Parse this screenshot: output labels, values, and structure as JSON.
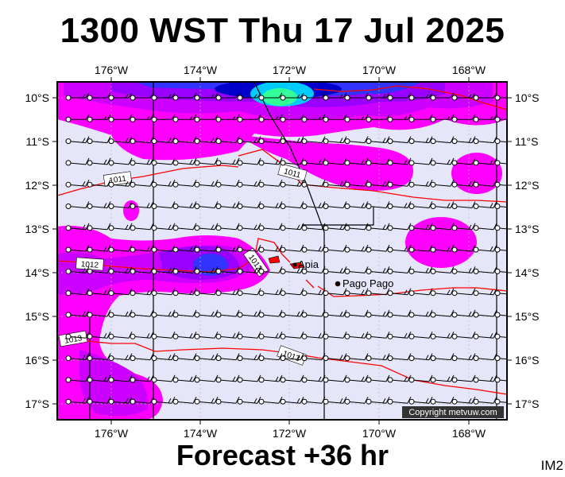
{
  "title": "1300 WST Thu 17 Jul 2025",
  "footer": "Forecast +36 hr",
  "corner_label": "IM2",
  "copyright": "Copyright metvuw.com",
  "map": {
    "lon_labels": [
      "176°W",
      "174°W",
      "172°W",
      "170°W",
      "168°W"
    ],
    "lat_labels": [
      "10°S",
      "11°S",
      "12°S",
      "13°S",
      "14°S",
      "15°S",
      "16°S",
      "17°S"
    ],
    "places": [
      {
        "name": "Apia",
        "lon": -171.76,
        "lat": -13.83
      },
      {
        "name": "Pago Pago",
        "lon": -170.7,
        "lat": -14.28
      }
    ],
    "isobar_labels": [
      "1011",
      "1011",
      "1012",
      "1012",
      "1013",
      "1013"
    ],
    "colors": {
      "background": "#e6e6fa",
      "magenta": "#ff00ff",
      "violet": "#cc00ff",
      "purple": "#9900ff",
      "blue": "#3333ff",
      "navy": "#0000cc",
      "cyan": "#00ccff",
      "green": "#33ff99",
      "isobar": "#ff0000"
    }
  }
}
